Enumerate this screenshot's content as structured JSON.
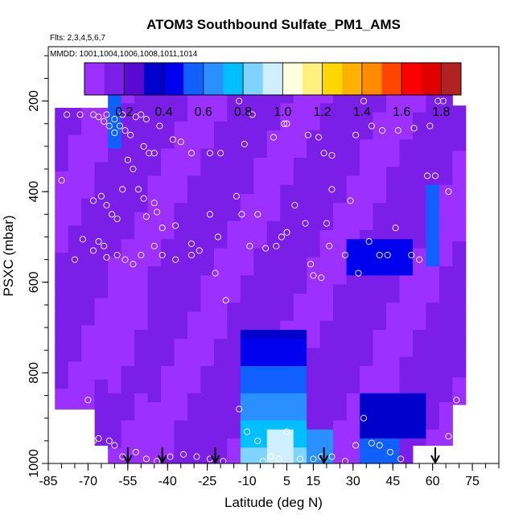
{
  "chart_data": {
    "type": "heatmap",
    "title": "ATOM3 Southbound Sulfate_PM1_AMS",
    "subtitle_flights": "Flts: 2,3,4,5,6,7",
    "subtitle_dates": "MMDD: 1001,1004,1006,1008,1011,1014",
    "xlabel": "Latitude (deg N)",
    "ylabel": "PSXC (mbar)",
    "xlim": [
      -85,
      85
    ],
    "ylim": [
      1000,
      80
    ],
    "x_ticks": [
      -85,
      -70,
      -55,
      -40,
      -25,
      -10,
      5,
      15,
      30,
      45,
      60,
      75
    ],
    "y_ticks": [
      200,
      400,
      600,
      800,
      1000
    ],
    "colorbar": {
      "range": [
        0,
        1.9
      ],
      "ticks": [
        0.2,
        0.4,
        0.6,
        0.8,
        1.0,
        1.2,
        1.4,
        1.6,
        1.8
      ],
      "tick_labels": [
        "0.2",
        "0.4",
        "0.6",
        "0.8",
        "1.0",
        "1.2",
        "1.4",
        "1.6",
        "1.8"
      ],
      "colors": [
        "#9b30ff",
        "#7a1ee8",
        "#5a0ad0",
        "#0000cd",
        "#0000ee",
        "#1060ff",
        "#2a90ff",
        "#00bfff",
        "#7fd4ff",
        "#cfeeff",
        "#ffffe0",
        "#fff080",
        "#ffd700",
        "#ffb000",
        "#ff8c00",
        "#ff4500",
        "#ff0000",
        "#e00000",
        "#b22222"
      ]
    },
    "profile_columns_lat": [
      -80,
      -75,
      -70,
      -65,
      -60,
      -55,
      -50,
      -45,
      -40,
      -35,
      -30,
      -25,
      -20,
      -15,
      -10,
      -5,
      0,
      5,
      10,
      15,
      20,
      25,
      30,
      35,
      40,
      45,
      50,
      55,
      60,
      65,
      70
    ],
    "arrow_latitudes": [
      -55,
      -42,
      -22,
      19,
      61
    ],
    "sample_points": [
      [
        -78,
        230
      ],
      [
        -73,
        230
      ],
      [
        -68,
        230
      ],
      [
        -66,
        235
      ],
      [
        -63,
        230
      ],
      [
        -60,
        240
      ],
      [
        -57,
        230
      ],
      [
        -52,
        235
      ],
      [
        -50,
        230
      ],
      [
        -48,
        240
      ],
      [
        -64,
        245
      ],
      [
        -62,
        255
      ],
      [
        -58,
        255
      ],
      [
        -56,
        265
      ],
      [
        -54,
        275
      ],
      [
        -60,
        270
      ],
      [
        -49,
        300
      ],
      [
        -47,
        315
      ],
      [
        -45,
        315
      ],
      [
        -43,
        255
      ],
      [
        -38,
        285
      ],
      [
        -35,
        290
      ],
      [
        -31,
        315
      ],
      [
        -24,
        315
      ],
      [
        -20,
        315
      ],
      [
        -11,
        295
      ],
      [
        -13,
        200
      ],
      [
        -8,
        230
      ],
      [
        0,
        280
      ],
      [
        4,
        250
      ],
      [
        5,
        250
      ],
      [
        13,
        275
      ],
      [
        17,
        280
      ],
      [
        19,
        315
      ],
      [
        22,
        320
      ],
      [
        31,
        275
      ],
      [
        34,
        200
      ],
      [
        37,
        255
      ],
      [
        41,
        265
      ],
      [
        47,
        265
      ],
      [
        53,
        260
      ],
      [
        59,
        255
      ],
      [
        62,
        200
      ],
      [
        64,
        200
      ],
      [
        -80,
        375
      ],
      [
        -68,
        420
      ],
      [
        -65,
        410
      ],
      [
        -63,
        430
      ],
      [
        -61,
        450
      ],
      [
        -59,
        460
      ],
      [
        -57,
        395
      ],
      [
        -55,
        330
      ],
      [
        -53,
        350
      ],
      [
        -51,
        395
      ],
      [
        -49,
        415
      ],
      [
        -48,
        455
      ],
      [
        -45,
        425
      ],
      [
        -44,
        445
      ],
      [
        -42,
        480
      ],
      [
        -37,
        475
      ],
      [
        -31,
        515
      ],
      [
        -24,
        450
      ],
      [
        -21,
        500
      ],
      [
        -14,
        410
      ],
      [
        -12,
        450
      ],
      [
        -9,
        520
      ],
      [
        -6,
        450
      ],
      [
        -3,
        525
      ],
      [
        1,
        520
      ],
      [
        3,
        500
      ],
      [
        5,
        490
      ],
      [
        8,
        430
      ],
      [
        12,
        470
      ],
      [
        14,
        560
      ],
      [
        15,
        585
      ],
      [
        18,
        590
      ],
      [
        20,
        470
      ],
      [
        21,
        520
      ],
      [
        22,
        395
      ],
      [
        27,
        540
      ],
      [
        29,
        420
      ],
      [
        32,
        580
      ],
      [
        36,
        510
      ],
      [
        40,
        540
      ],
      [
        43,
        540
      ],
      [
        46,
        480
      ],
      [
        52,
        540
      ],
      [
        55,
        550
      ],
      [
        58,
        365
      ],
      [
        61,
        365
      ],
      [
        66,
        400
      ],
      [
        -75,
        550
      ],
      [
        -72,
        505
      ],
      [
        -68,
        530
      ],
      [
        -66,
        510
      ],
      [
        -64,
        520
      ],
      [
        -63,
        545
      ],
      [
        -59,
        540
      ],
      [
        -56,
        550
      ],
      [
        -53,
        560
      ],
      [
        -50,
        540
      ],
      [
        -45,
        520
      ],
      [
        -42,
        540
      ],
      [
        -37,
        550
      ],
      [
        -31,
        540
      ],
      [
        -28,
        530
      ],
      [
        -22,
        580
      ],
      [
        -18,
        640
      ],
      [
        -13,
        880
      ],
      [
        -10,
        930
      ],
      [
        -6,
        950
      ],
      [
        -1,
        985
      ],
      [
        5,
        930
      ],
      [
        10,
        990
      ],
      [
        15,
        990
      ],
      [
        18,
        985
      ],
      [
        22,
        985
      ],
      [
        27,
        995
      ],
      [
        31,
        960
      ],
      [
        34,
        900
      ],
      [
        37,
        955
      ],
      [
        40,
        960
      ],
      [
        44,
        975
      ],
      [
        48,
        990
      ],
      [
        66,
        940
      ],
      [
        69,
        860
      ],
      [
        -76,
        960
      ],
      [
        -72,
        955
      ],
      [
        -70,
        940
      ],
      [
        -68,
        950
      ],
      [
        -66,
        945
      ],
      [
        -62,
        950
      ],
      [
        -60,
        960
      ],
      [
        -57,
        985
      ],
      [
        -52,
        975
      ],
      [
        -48,
        990
      ],
      [
        -44,
        995
      ],
      [
        -39,
        985
      ],
      [
        -34,
        980
      ],
      [
        -29,
        985
      ],
      [
        -24,
        990
      ],
      [
        -19,
        995
      ],
      [
        -4,
        995
      ],
      [
        2,
        990
      ],
      [
        -70,
        860
      ]
    ]
  }
}
